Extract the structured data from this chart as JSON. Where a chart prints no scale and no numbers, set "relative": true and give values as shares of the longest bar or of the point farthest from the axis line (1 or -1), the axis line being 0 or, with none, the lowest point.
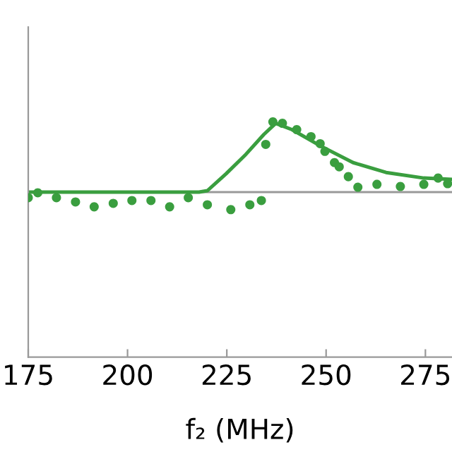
{
  "chart_data": {
    "type": "scatter",
    "relative": true,
    "xlabel": "f₂ (MHz)",
    "xlim": [
      175,
      281.7
    ],
    "xticks": [
      175,
      200,
      225,
      250,
      275
    ],
    "series": [
      {
        "color": "#3a9e3f",
        "marker": "circle",
        "x": [
          175,
          177.4,
          182.1,
          186.9,
          191.6,
          196.4,
          201.1,
          205.9,
          210.6,
          215.3,
          220.1,
          226,
          230.8,
          233.7,
          234.8,
          236.6,
          239,
          242.6,
          246.2,
          248.5,
          249.7,
          252.1,
          253.3,
          255.6,
          258,
          262.8,
          268.7,
          274.6,
          278.2,
          280.6
        ],
        "values": [
          -0.08,
          -0.01,
          -0.08,
          -0.14,
          -0.21,
          -0.16,
          -0.12,
          -0.12,
          -0.21,
          -0.08,
          -0.18,
          -0.25,
          -0.18,
          -0.12,
          0.68,
          1,
          0.98,
          0.89,
          0.79,
          0.69,
          0.58,
          0.42,
          0.36,
          0.22,
          0.07,
          0.11,
          0.08,
          0.11,
          0.2,
          0.12
        ]
      },
      {
        "type": "line",
        "color": "#3a9e3f",
        "line_style": "solid",
        "x": [
          175,
          218,
          220.1,
          224.8,
          229.5,
          234.3,
          237.3,
          241.4,
          248.5,
          256.8,
          265.1,
          274.6,
          281.7
        ],
        "values": [
          0,
          0,
          0.02,
          0.26,
          0.52,
          0.82,
          0.98,
          0.89,
          0.66,
          0.42,
          0.28,
          0.2,
          0.18
        ]
      }
    ]
  }
}
